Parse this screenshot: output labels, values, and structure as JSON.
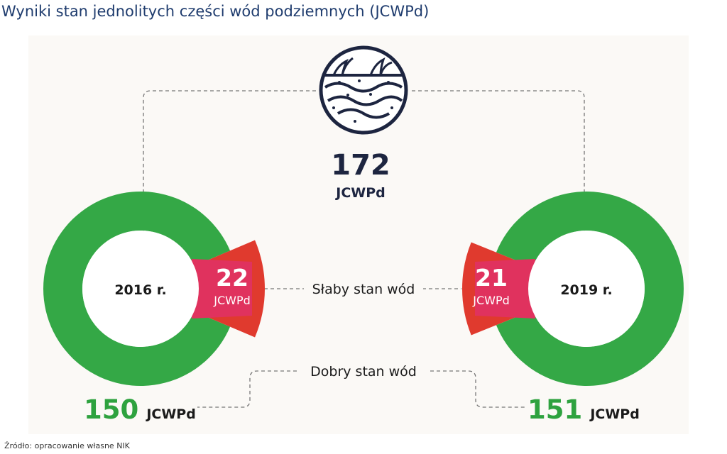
{
  "title": "Wyniki stan jednolitych części wód podziemnych (JCWPd)",
  "source": "Źródło: opracowanie własne NIK",
  "icon": "groundwater-icon",
  "colors": {
    "good": "#34a846",
    "poor_outer": "#e03a2e",
    "poor_inner": "#e0325e",
    "title": "#1f3c6e",
    "dark": "#1d2540"
  },
  "total": {
    "value": "172",
    "unit": "JCWPd"
  },
  "labels": {
    "poor": "Słaby stan wód",
    "good": "Dobry stan wód"
  },
  "chart_data": {
    "type": "pie",
    "title": "Wyniki stan jednolitych części wód podziemnych (JCWPd)",
    "total": 172,
    "unit": "JCWPd",
    "categories": [
      "Dobry stan wód",
      "Słaby stan wód"
    ],
    "series": [
      {
        "name": "2016 r.",
        "values": [
          150,
          22
        ]
      },
      {
        "name": "2019 r.",
        "values": [
          151,
          21
        ]
      }
    ]
  },
  "donuts": [
    {
      "year": "2016 r.",
      "poor_value": "22",
      "poor_unit": "JCWPd",
      "good_value": "150",
      "good_unit": "JCWPd"
    },
    {
      "year": "2019 r.",
      "poor_value": "21",
      "poor_unit": "JCWPd",
      "good_value": "151",
      "good_unit": "JCWPd"
    }
  ]
}
